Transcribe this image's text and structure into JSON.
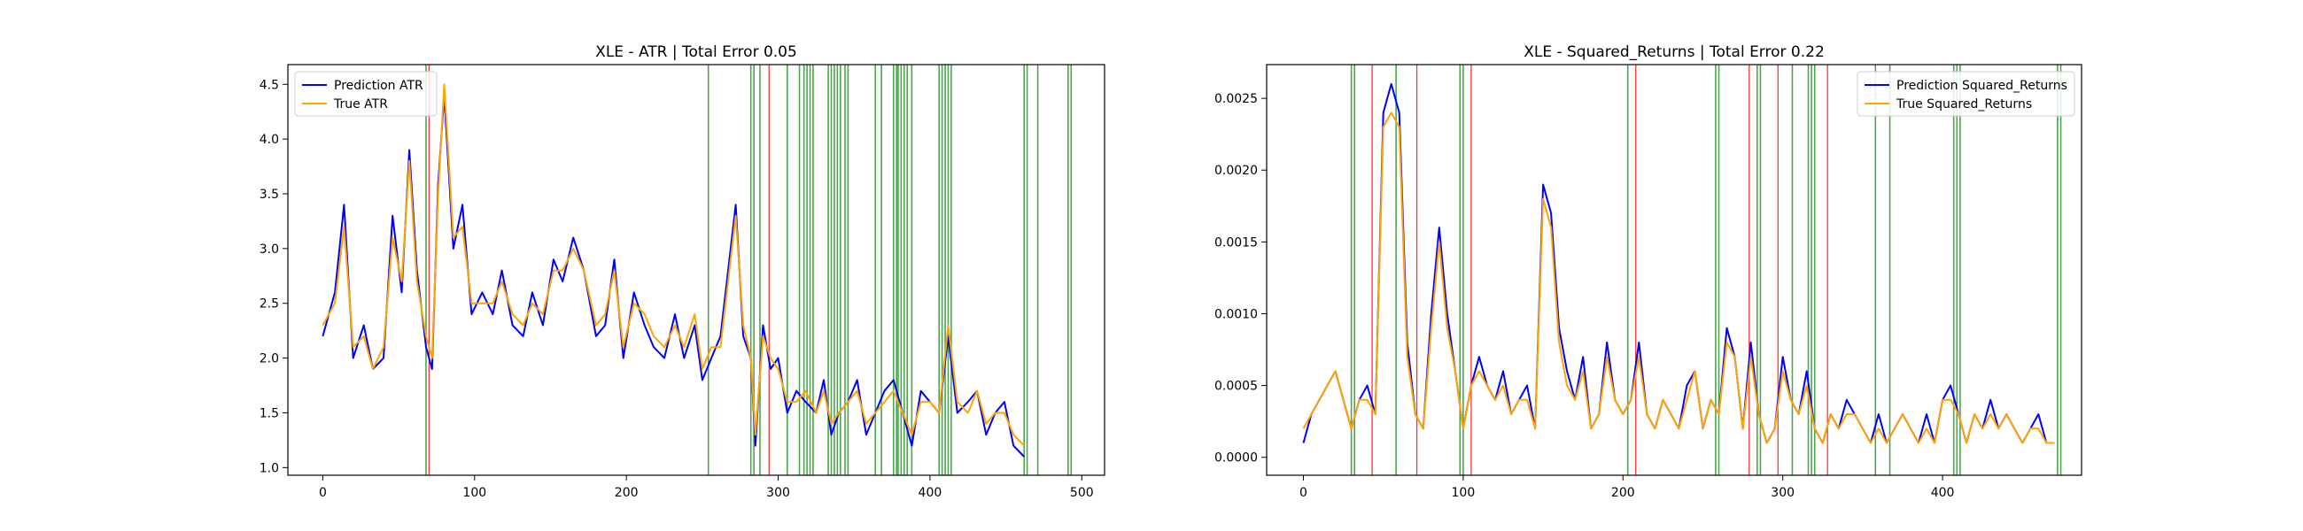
{
  "chart_data": [
    {
      "type": "line",
      "title": "XLE - ATR | Total Error 0.05",
      "xlim": [
        -23,
        515
      ],
      "ylim": [
        0.93,
        4.68
      ],
      "xticks": [
        0,
        100,
        200,
        300,
        400,
        500
      ],
      "yticks": [
        1.0,
        1.5,
        2.0,
        2.5,
        3.0,
        3.5,
        4.0,
        4.5
      ],
      "ytick_labels": [
        "1.0",
        "1.5",
        "2.0",
        "2.5",
        "3.0",
        "3.5",
        "4.0",
        "4.5"
      ],
      "legend_position": "upper-left",
      "series": [
        {
          "name": "Prediction ATR",
          "color": "#0000ff",
          "x": [
            0,
            8,
            14,
            20,
            27,
            33,
            40,
            46,
            52,
            57,
            62,
            68,
            72,
            76,
            80,
            86,
            92,
            98,
            105,
            112,
            118,
            125,
            132,
            138,
            145,
            152,
            158,
            165,
            172,
            180,
            186,
            192,
            198,
            205,
            212,
            218,
            225,
            232,
            238,
            245,
            250,
            256,
            262,
            267,
            272,
            277,
            282,
            285,
            290,
            295,
            300,
            306,
            312,
            318,
            325,
            330,
            335,
            340,
            346,
            352,
            358,
            364,
            370,
            376,
            382,
            388,
            394,
            400,
            406,
            412,
            418,
            425,
            431,
            437,
            443,
            449,
            455,
            462
          ],
          "y": [
            2.2,
            2.6,
            3.4,
            2.0,
            2.3,
            1.9,
            2.0,
            3.3,
            2.6,
            3.9,
            2.8,
            2.1,
            1.9,
            3.6,
            4.4,
            3.0,
            3.4,
            2.4,
            2.6,
            2.4,
            2.8,
            2.3,
            2.2,
            2.6,
            2.3,
            2.9,
            2.7,
            3.1,
            2.8,
            2.2,
            2.3,
            2.9,
            2.0,
            2.6,
            2.3,
            2.1,
            2.0,
            2.4,
            2.0,
            2.3,
            1.8,
            2.0,
            2.2,
            2.8,
            3.4,
            2.2,
            2.0,
            1.2,
            2.3,
            1.9,
            2.0,
            1.5,
            1.7,
            1.6,
            1.5,
            1.8,
            1.3,
            1.5,
            1.6,
            1.8,
            1.3,
            1.5,
            1.7,
            1.8,
            1.5,
            1.2,
            1.7,
            1.6,
            1.5,
            2.2,
            1.5,
            1.6,
            1.7,
            1.3,
            1.5,
            1.6,
            1.2,
            1.1
          ]
        },
        {
          "name": "True ATR",
          "color": "#ffa500",
          "x": [
            0,
            8,
            14,
            20,
            27,
            33,
            40,
            46,
            52,
            57,
            62,
            68,
            72,
            76,
            80,
            86,
            92,
            98,
            105,
            112,
            118,
            125,
            132,
            138,
            145,
            152,
            158,
            165,
            172,
            180,
            186,
            192,
            198,
            205,
            212,
            218,
            225,
            232,
            238,
            245,
            250,
            256,
            262,
            267,
            272,
            277,
            282,
            285,
            290,
            295,
            300,
            306,
            312,
            318,
            325,
            330,
            335,
            340,
            346,
            352,
            358,
            364,
            370,
            376,
            382,
            388,
            394,
            400,
            406,
            412,
            418,
            425,
            431,
            437,
            443,
            449,
            455,
            462
          ],
          "y": [
            2.3,
            2.5,
            3.2,
            2.1,
            2.2,
            1.9,
            2.1,
            3.1,
            2.7,
            3.8,
            2.7,
            2.2,
            2.0,
            3.5,
            4.5,
            3.1,
            3.2,
            2.5,
            2.5,
            2.5,
            2.7,
            2.4,
            2.3,
            2.5,
            2.4,
            2.8,
            2.8,
            3.0,
            2.8,
            2.3,
            2.4,
            2.8,
            2.1,
            2.5,
            2.4,
            2.2,
            2.1,
            2.3,
            2.1,
            2.4,
            1.9,
            2.1,
            2.1,
            2.7,
            3.3,
            2.3,
            2.0,
            1.3,
            2.2,
            2.0,
            1.9,
            1.6,
            1.6,
            1.7,
            1.5,
            1.7,
            1.4,
            1.5,
            1.6,
            1.7,
            1.4,
            1.5,
            1.6,
            1.7,
            1.5,
            1.3,
            1.6,
            1.6,
            1.5,
            2.3,
            1.6,
            1.5,
            1.7,
            1.4,
            1.5,
            1.5,
            1.3,
            1.2
          ]
        }
      ],
      "vlines": {
        "green": [
          68,
          254,
          282,
          284,
          288,
          306,
          314,
          317,
          319,
          321,
          323,
          333,
          335,
          337,
          339,
          341,
          344,
          346,
          364,
          368,
          376,
          378,
          379,
          381,
          383,
          385,
          388,
          406,
          408,
          410,
          412,
          414,
          462,
          464,
          471,
          491,
          493
        ],
        "red": [
          70,
          294
        ],
        "green_color": "#008000",
        "red_color": "#ff0000"
      }
    },
    {
      "type": "line",
      "title": "XLE - Squared_Returns | Total Error 0.22",
      "xlim": [
        -23,
        487
      ],
      "ylim": [
        -0.000125,
        0.002735
      ],
      "xticks": [
        0,
        100,
        200,
        300,
        400
      ],
      "yticks": [
        0.0,
        0.0005,
        0.001,
        0.0015,
        0.002,
        0.0025
      ],
      "ytick_labels": [
        "0.0000",
        "0.0005",
        "0.0010",
        "0.0015",
        "0.0020",
        "0.0025"
      ],
      "legend_position": "upper-right",
      "series": [
        {
          "name": "Prediction Squared_Returns",
          "color": "#0000ff",
          "x": [
            0,
            5,
            10,
            15,
            20,
            25,
            30,
            35,
            40,
            45,
            50,
            55,
            60,
            65,
            70,
            75,
            80,
            85,
            90,
            95,
            100,
            105,
            110,
            115,
            120,
            125,
            130,
            135,
            140,
            145,
            150,
            155,
            160,
            165,
            170,
            175,
            180,
            185,
            190,
            195,
            200,
            205,
            210,
            215,
            220,
            225,
            230,
            235,
            240,
            245,
            250,
            255,
            260,
            265,
            270,
            275,
            280,
            285,
            290,
            295,
            300,
            305,
            310,
            315,
            320,
            325,
            330,
            335,
            340,
            345,
            350,
            355,
            360,
            365,
            370,
            375,
            380,
            385,
            390,
            395,
            400,
            405,
            410,
            415,
            420,
            425,
            430,
            435,
            440,
            445,
            450,
            455,
            460,
            465,
            470
          ],
          "y": [
            0.0001,
            0.0003,
            0.0004,
            0.0005,
            0.0006,
            0.0004,
            0.0002,
            0.0004,
            0.0005,
            0.0003,
            0.0024,
            0.0026,
            0.0024,
            0.0008,
            0.0003,
            0.0002,
            0.001,
            0.0016,
            0.001,
            0.0006,
            0.0002,
            0.0005,
            0.0007,
            0.0005,
            0.0004,
            0.0006,
            0.0003,
            0.0004,
            0.0005,
            0.0002,
            0.0019,
            0.0017,
            0.0009,
            0.0006,
            0.0004,
            0.0007,
            0.0002,
            0.0003,
            0.0008,
            0.0004,
            0.0003,
            0.0004,
            0.0008,
            0.0003,
            0.0002,
            0.0004,
            0.0003,
            0.0002,
            0.0005,
            0.0006,
            0.0002,
            0.0004,
            0.0003,
            0.0009,
            0.0007,
            0.0002,
            0.0008,
            0.0003,
            0.0001,
            0.0002,
            0.0007,
            0.0004,
            0.0003,
            0.0006,
            0.0002,
            0.0001,
            0.0003,
            0.0002,
            0.0004,
            0.0003,
            0.0002,
            0.0001,
            0.0003,
            0.0001,
            0.0002,
            0.0003,
            0.0002,
            0.0001,
            0.0003,
            0.0001,
            0.0004,
            0.0005,
            0.0003,
            0.0001,
            0.0003,
            0.0002,
            0.0004,
            0.0002,
            0.0003,
            0.0002,
            0.0001,
            0.0002,
            0.0003,
            0.0001,
            0.0001
          ],
          "note": ""
        },
        {
          "name": "True Squared_Returns",
          "color": "#ffa500",
          "x": [
            0,
            5,
            10,
            15,
            20,
            25,
            30,
            35,
            40,
            45,
            50,
            55,
            60,
            65,
            70,
            75,
            80,
            85,
            90,
            95,
            100,
            105,
            110,
            115,
            120,
            125,
            130,
            135,
            140,
            145,
            150,
            155,
            160,
            165,
            170,
            175,
            180,
            185,
            190,
            195,
            200,
            205,
            210,
            215,
            220,
            225,
            230,
            235,
            240,
            245,
            250,
            255,
            260,
            265,
            270,
            275,
            280,
            285,
            290,
            295,
            300,
            305,
            310,
            315,
            320,
            325,
            330,
            335,
            340,
            345,
            350,
            355,
            360,
            365,
            370,
            375,
            380,
            385,
            390,
            395,
            400,
            405,
            410,
            415,
            420,
            425,
            430,
            435,
            440,
            445,
            450,
            455,
            460,
            465,
            470
          ],
          "y": [
            0.0002,
            0.0003,
            0.0004,
            0.0005,
            0.0006,
            0.0004,
            0.0002,
            0.0004,
            0.0004,
            0.0003,
            0.0023,
            0.0024,
            0.0023,
            0.0007,
            0.0003,
            0.0002,
            0.0009,
            0.0015,
            0.0009,
            0.0006,
            0.0002,
            0.0005,
            0.0006,
            0.0005,
            0.0004,
            0.0005,
            0.0003,
            0.0004,
            0.0004,
            0.0002,
            0.0018,
            0.0016,
            0.0008,
            0.0005,
            0.0004,
            0.0006,
            0.0002,
            0.0003,
            0.0007,
            0.0004,
            0.0003,
            0.0004,
            0.0007,
            0.0003,
            0.0002,
            0.0004,
            0.0003,
            0.0002,
            0.0004,
            0.0006,
            0.0002,
            0.0004,
            0.0003,
            0.0008,
            0.0007,
            0.0002,
            0.0007,
            0.0003,
            0.0001,
            0.0002,
            0.0006,
            0.0004,
            0.0003,
            0.0005,
            0.0002,
            0.0001,
            0.0003,
            0.0002,
            0.0003,
            0.0003,
            0.0002,
            0.0001,
            0.0002,
            0.0001,
            0.0002,
            0.0003,
            0.0002,
            0.0001,
            0.0002,
            0.0001,
            0.0004,
            0.0004,
            0.0003,
            0.0001,
            0.0003,
            0.0002,
            0.0003,
            0.0002,
            0.0003,
            0.0002,
            0.0001,
            0.0002,
            0.0002,
            0.0001,
            0.0001
          ]
        }
      ],
      "vlines": {
        "green": [
          30,
          32,
          58,
          98,
          100,
          203,
          258,
          260,
          284,
          286,
          306,
          316,
          318,
          320,
          358,
          367,
          407,
          409,
          411,
          472,
          474
        ],
        "red": [
          43,
          71,
          105,
          208,
          279,
          297,
          328
        ],
        "green_color": "#008000",
        "red_color": "#ff0000"
      }
    }
  ]
}
